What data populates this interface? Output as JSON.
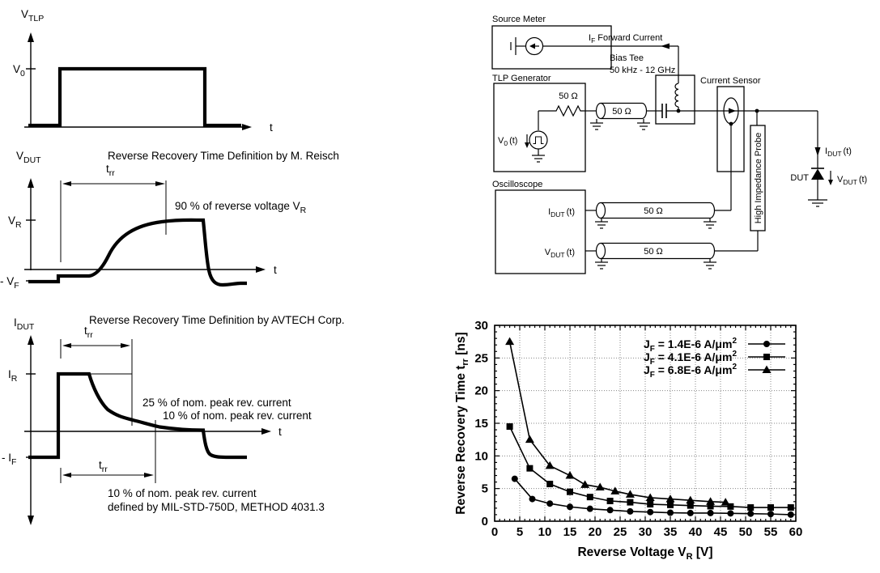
{
  "figure": {
    "background": "#ffffff",
    "ink": "#000000",
    "grid_color": "#888888"
  },
  "panel_tlp": {
    "axis_label": {
      "base": "V",
      "sub": "TLP"
    },
    "level_label": {
      "base": "V",
      "sub": "0"
    },
    "time_label": "t"
  },
  "panel_vdut": {
    "title": "Reverse Recovery Time Definition by M. Reisch",
    "axis_label": {
      "base": "V",
      "sub": "DUT"
    },
    "trr_label": {
      "base": "t",
      "sub": "rr"
    },
    "ninety_pct_label": {
      "pre": "90 % of reverse voltage V",
      "sub": "R"
    },
    "vr_label": {
      "base": "V",
      "sub": "R"
    },
    "vf_label": {
      "base": "- V",
      "sub": "F"
    },
    "time_label": "t"
  },
  "panel_idut": {
    "title": "Reverse Recovery Time Definition by AVTECH Corp.",
    "axis_label": {
      "base": "I",
      "sub": "DUT"
    },
    "trr_top_label": {
      "base": "t",
      "sub": "rr"
    },
    "ir_label": {
      "base": "I",
      "sub": "R"
    },
    "if_label": {
      "base": "- I",
      "sub": "F"
    },
    "pct25_label": "25 % of nom. peak rev. current",
    "pct10_label": "10 % of nom. peak rev. current",
    "trr_bottom_label": {
      "base": "t",
      "sub": "rr"
    },
    "pct10_bottom_label": "10 % of nom. peak rev. current",
    "mil_std_label": "defined by MIL-STD-750D, METHOD 4031.3",
    "time_label": "t"
  },
  "circuit": {
    "source_meter_label": "Source Meter",
    "forward_current_label": {
      "base": "I",
      "sub": "F",
      "rest": "Forward Current"
    },
    "bias_tee_label": "Bias Tee",
    "bias_tee_range": "50 kHz - 12 GHz",
    "tlp_generator_label": "TLP Generator",
    "resistor_value": "50 Ω",
    "tlp_coax_value": "50 Ω",
    "v0_source_label": {
      "base": "V",
      "sub": "0",
      "rest": "(t)"
    },
    "current_sensor_label": "Current Sensor",
    "probe_label": "High Impedance Probe",
    "oscilloscope_label": "Oscilloscope",
    "scope_ch1_label": {
      "base": "I",
      "sub": "DUT",
      "rest": "(t)"
    },
    "scope_ch2_label": {
      "base": "V",
      "sub": "DUT",
      "rest": "(t)"
    },
    "scope_coax1_value": "50 Ω",
    "scope_coax2_value": "50 Ω",
    "idut_label": {
      "base": "I",
      "sub": "DUT",
      "rest": "(t)"
    },
    "dut_label": "DUT",
    "vdut_label": {
      "base": "V",
      "sub": "DUT",
      "rest": "(t)"
    }
  },
  "chart_data": {
    "type": "line",
    "title": "",
    "xlabel": "Reverse Voltage V_R [V]",
    "ylabel": "Reverse Recovery Time t_rr [ns]",
    "xlabel_parts": [
      {
        "t": "Reverse Voltage V"
      },
      {
        "t": "R",
        "sub": true
      },
      {
        "t": " [V]"
      }
    ],
    "ylabel_parts": [
      {
        "t": "Reverse Recovery Time t"
      },
      {
        "t": "rr",
        "sub": true
      },
      {
        "t": " [ns]"
      }
    ],
    "xlim": [
      0,
      60
    ],
    "ylim": [
      0,
      30
    ],
    "x_ticks": [
      0,
      5,
      10,
      15,
      20,
      25,
      30,
      35,
      40,
      45,
      50,
      55,
      60
    ],
    "y_ticks": [
      0,
      5,
      10,
      15,
      20,
      25,
      30
    ],
    "minor_tick_step": 1,
    "grid": true,
    "legend_position": "top-right",
    "line_color": "#000000",
    "series": [
      {
        "name": "J_F = 1.4E-6 A/μm^2",
        "name_parts": [
          {
            "t": "J"
          },
          {
            "t": "F",
            "sub": true
          },
          {
            "t": " = 1.4E-6 A/μm"
          },
          {
            "t": "2",
            "sup": true
          }
        ],
        "marker": "circle",
        "x": [
          4,
          7.5,
          11,
          15,
          19,
          23,
          27,
          31,
          35,
          39,
          43,
          47,
          51,
          55,
          59
        ],
        "y": [
          6.5,
          3.4,
          2.7,
          2.2,
          1.9,
          1.7,
          1.5,
          1.4,
          1.3,
          1.25,
          1.25,
          1.2,
          1.15,
          1.1,
          1.0
        ]
      },
      {
        "name": "J_F = 4.1E-6 A/μm^2",
        "name_parts": [
          {
            "t": "J"
          },
          {
            "t": "F",
            "sub": true
          },
          {
            "t": " = 4.1E-6 A/μm"
          },
          {
            "t": "2",
            "sup": true
          }
        ],
        "marker": "square",
        "x": [
          3,
          7,
          11,
          15,
          19,
          23,
          27,
          31,
          35,
          39,
          43,
          47,
          51,
          55,
          59
        ],
        "y": [
          14.5,
          8.1,
          5.7,
          4.5,
          3.7,
          3.1,
          2.9,
          2.6,
          2.5,
          2.4,
          2.3,
          2.25,
          2.1,
          2.1,
          2.1
        ]
      },
      {
        "name": "J_F = 6.8E-6 A/μm^2",
        "name_parts": [
          {
            "t": "J"
          },
          {
            "t": "F",
            "sub": true
          },
          {
            "t": " = 6.8E-6 A/μm"
          },
          {
            "t": "2",
            "sup": true
          }
        ],
        "marker": "triangle",
        "x": [
          3,
          7,
          11,
          15,
          18,
          21,
          24,
          27,
          31,
          35,
          39,
          43,
          46
        ],
        "y": [
          27.5,
          12.5,
          8.5,
          7.0,
          5.6,
          5.2,
          4.6,
          4.1,
          3.6,
          3.4,
          3.2,
          3.0,
          2.9
        ]
      }
    ]
  }
}
